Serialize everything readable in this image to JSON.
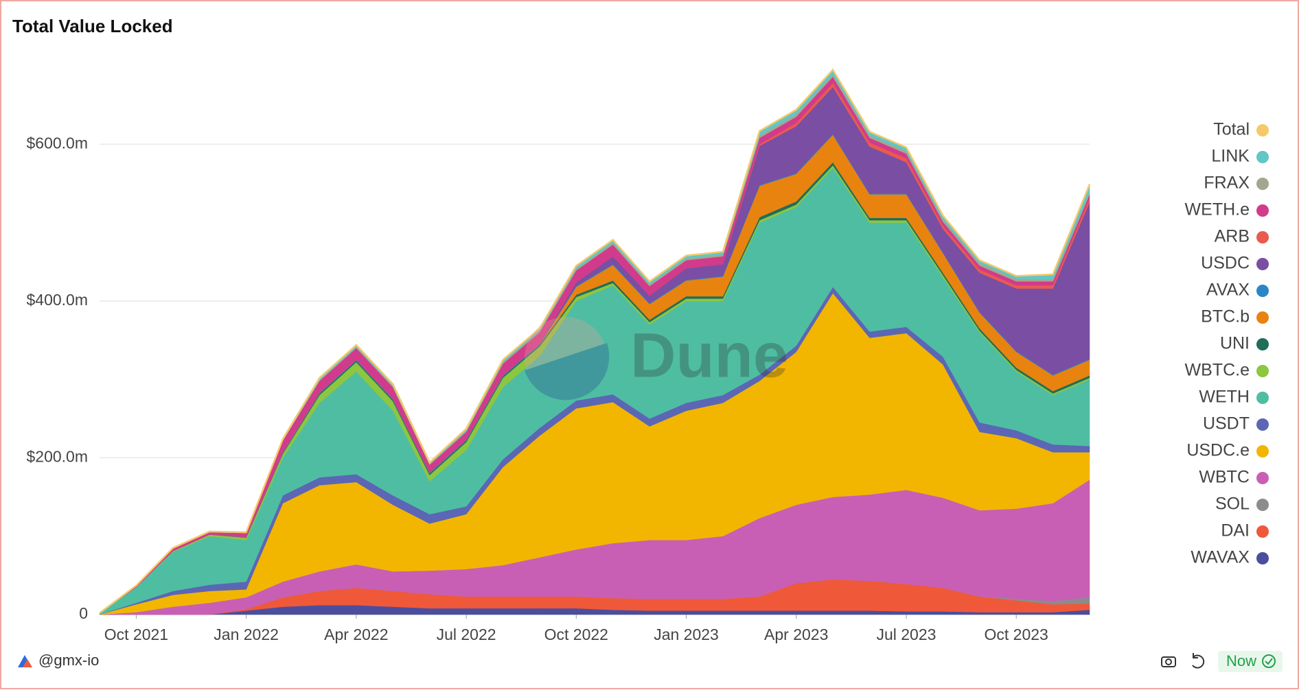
{
  "chart_data": {
    "type": "stacked-area",
    "title": "Total Value Locked",
    "watermark": "Dune",
    "x": [
      "2021-09",
      "2021-10",
      "2021-11",
      "2021-12",
      "2022-01",
      "2022-02",
      "2022-03",
      "2022-04",
      "2022-05",
      "2022-06",
      "2022-07",
      "2022-08",
      "2022-09",
      "2022-10",
      "2022-11",
      "2022-12",
      "2023-01",
      "2023-02",
      "2023-03",
      "2023-04",
      "2023-05",
      "2023-06",
      "2023-07",
      "2023-08",
      "2023-09",
      "2023-10",
      "2023-11",
      "2023-12"
    ],
    "xlim": [
      "2021-09",
      "2023-12"
    ],
    "xticks": [
      {
        "value": "2021-10",
        "label": "Oct 2021"
      },
      {
        "value": "2022-01",
        "label": "Jan 2022"
      },
      {
        "value": "2022-04",
        "label": "Apr 2022"
      },
      {
        "value": "2022-07",
        "label": "Jul 2022"
      },
      {
        "value": "2022-10",
        "label": "Oct 2022"
      },
      {
        "value": "2023-01",
        "label": "Jan 2023"
      },
      {
        "value": "2023-04",
        "label": "Apr 2023"
      },
      {
        "value": "2023-07",
        "label": "Jul 2023"
      },
      {
        "value": "2023-10",
        "label": "Oct 2023"
      }
    ],
    "ylim": [
      0,
      700
    ],
    "yticks": [
      0,
      {
        "value": 200,
        "label": "$200.0m"
      },
      {
        "value": 400,
        "label": "$400.0m"
      },
      {
        "value": 600,
        "label": "$600.0m"
      }
    ],
    "grid": true,
    "legend": "right",
    "series": [
      {
        "name": "Total",
        "kind": "line",
        "color": "#f5c96a",
        "values": [
          2,
          37,
          85,
          106,
          105,
          224,
          302,
          344,
          294,
          194,
          237,
          325,
          365,
          445,
          478,
          425,
          458,
          463,
          617,
          644,
          695,
          616,
          596,
          509,
          452,
          432,
          434,
          549
        ]
      },
      {
        "name": "LINK",
        "kind": "area",
        "color": "#62c6c6",
        "values": [
          0,
          0,
          1,
          1,
          1,
          2,
          3,
          3,
          3,
          2,
          3,
          3,
          3,
          4,
          4,
          4,
          4,
          4,
          6,
          6,
          6,
          5,
          5,
          5,
          4,
          4,
          6,
          10
        ]
      },
      {
        "name": "FRAX",
        "kind": "area",
        "color": "#a3a78e",
        "values": [
          0,
          0,
          0,
          0,
          0,
          0,
          1,
          1,
          1,
          1,
          1,
          2,
          2,
          2,
          2,
          2,
          2,
          2,
          3,
          3,
          3,
          3,
          3,
          3,
          3,
          3,
          3,
          3
        ]
      },
      {
        "name": "WETH.e",
        "kind": "area",
        "color": "#d23b8b",
        "values": [
          0,
          2,
          3,
          3,
          5,
          15,
          15,
          15,
          15,
          10,
          10,
          15,
          15,
          15,
          15,
          12,
          10,
          10,
          8,
          8,
          8,
          6,
          6,
          5,
          5,
          5,
          5,
          5
        ]
      },
      {
        "name": "ARB",
        "kind": "area",
        "color": "#e95a4f",
        "values": [
          0,
          0,
          0,
          0,
          0,
          0,
          0,
          0,
          0,
          0,
          0,
          0,
          0,
          0,
          0,
          0,
          0,
          0,
          2,
          4,
          5,
          5,
          5,
          4,
          4,
          4,
          4,
          5
        ]
      },
      {
        "name": "USDC",
        "kind": "area",
        "color": "#7a4ea3",
        "values": [
          0,
          0,
          0,
          0,
          0,
          0,
          0,
          0,
          0,
          0,
          0,
          0,
          0,
          5,
          10,
          10,
          15,
          15,
          50,
          60,
          60,
          60,
          40,
          30,
          50,
          80,
          110,
          200
        ]
      },
      {
        "name": "AVAX",
        "kind": "area",
        "color": "#2b86c5",
        "values": [
          0,
          0,
          0,
          0,
          1,
          1,
          1,
          1,
          1,
          1,
          1,
          1,
          1,
          1,
          1,
          1,
          1,
          1,
          1,
          1,
          1,
          1,
          1,
          1,
          1,
          1,
          1,
          1
        ]
      },
      {
        "name": "BTC.b",
        "kind": "area",
        "color": "#e8830f",
        "values": [
          0,
          0,
          0,
          0,
          0,
          0,
          0,
          0,
          0,
          0,
          0,
          0,
          0,
          10,
          20,
          20,
          20,
          25,
          40,
          35,
          35,
          30,
          30,
          25,
          20,
          20,
          20,
          20
        ]
      },
      {
        "name": "UNI",
        "kind": "area",
        "color": "#1f6e5c",
        "values": [
          0,
          0,
          0,
          0,
          0,
          1,
          2,
          2,
          2,
          2,
          2,
          2,
          2,
          3,
          3,
          3,
          3,
          3,
          4,
          4,
          4,
          3,
          3,
          3,
          3,
          3,
          3,
          3
        ]
      },
      {
        "name": "WBTC.e",
        "kind": "area",
        "color": "#8dc63f",
        "values": [
          0,
          0,
          1,
          2,
          3,
          5,
          10,
          12,
          12,
          8,
          10,
          12,
          12,
          5,
          3,
          3,
          3,
          3,
          3,
          3,
          3,
          3,
          3,
          3,
          2,
          2,
          2,
          2
        ]
      },
      {
        "name": "WETH",
        "kind": "area",
        "color": "#4fbda2",
        "values": [
          2,
          20,
          50,
          62,
          53,
          48,
          95,
          131,
          108,
          42,
          72,
          92,
          92,
          127,
          139,
          120,
          130,
          120,
          194,
          177,
          152,
          139,
          133,
          101,
          115,
          75,
          63,
          85
        ]
      },
      {
        "name": "USDT",
        "kind": "area",
        "color": "#5b66b5",
        "values": [
          0,
          2,
          5,
          8,
          10,
          10,
          10,
          10,
          12,
          12,
          10,
          10,
          10,
          10,
          10,
          10,
          10,
          10,
          8,
          8,
          8,
          8,
          8,
          10,
          12,
          10,
          10,
          8
        ]
      },
      {
        "name": "USDC.e",
        "kind": "area",
        "color": "#f2b600",
        "values": [
          0,
          10,
          15,
          15,
          10,
          100,
          110,
          105,
          85,
          60,
          70,
          125,
          155,
          180,
          180,
          145,
          165,
          170,
          175,
          195,
          260,
          200,
          200,
          170,
          100,
          90,
          65,
          35
        ]
      },
      {
        "name": "WBTC",
        "kind": "area",
        "color": "#c95fb4",
        "values": [
          0,
          3,
          10,
          15,
          15,
          20,
          25,
          30,
          25,
          30,
          35,
          40,
          50,
          60,
          70,
          75,
          75,
          80,
          100,
          100,
          105,
          110,
          120,
          115,
          110,
          115,
          125,
          150
        ]
      },
      {
        "name": "SOL",
        "kind": "area",
        "color": "#8c8c8c",
        "values": [
          0,
          0,
          0,
          0,
          0,
          0,
          0,
          0,
          0,
          0,
          0,
          0,
          0,
          0,
          0,
          0,
          0,
          0,
          0,
          0,
          0,
          0,
          0,
          0,
          0,
          2,
          4,
          8
        ]
      },
      {
        "name": "DAI",
        "kind": "area",
        "color": "#f0583a",
        "values": [
          0,
          0,
          0,
          0,
          2,
          12,
          18,
          22,
          20,
          18,
          15,
          15,
          15,
          15,
          15,
          15,
          15,
          15,
          18,
          35,
          40,
          38,
          35,
          30,
          20,
          15,
          10,
          8
        ]
      },
      {
        "name": "WAVAX",
        "kind": "area",
        "color": "#4b4e9c",
        "values": [
          0,
          0,
          0,
          0,
          5,
          10,
          12,
          12,
          10,
          8,
          8,
          8,
          8,
          8,
          6,
          5,
          5,
          5,
          5,
          5,
          5,
          5,
          4,
          4,
          3,
          3,
          3,
          6
        ]
      }
    ]
  },
  "footer": {
    "author": "@gmx-io",
    "status": "Now"
  }
}
